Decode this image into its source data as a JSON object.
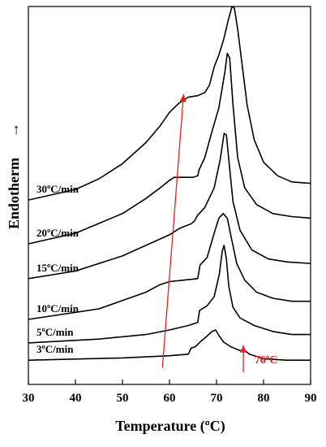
{
  "chart_data": {
    "type": "line",
    "title": "",
    "xlabel": "Temperature (ºC)",
    "ylabel": "Endotherm",
    "ylabel_arrow": "→",
    "xlim": [
      30,
      90
    ],
    "ylim": [
      0,
      100
    ],
    "x_ticks": [
      30,
      40,
      50,
      60,
      70,
      80,
      90
    ],
    "grid": false,
    "legend": "none",
    "series": [
      {
        "name": "3ºC/min",
        "points": [
          [
            30,
            6.4
          ],
          [
            50,
            7.0
          ],
          [
            60,
            7.6
          ],
          [
            64,
            8.0
          ],
          [
            64.6,
            9.6
          ],
          [
            65.5,
            10.0
          ],
          [
            66.5,
            11.2
          ],
          [
            68,
            12.8
          ],
          [
            69,
            14.0
          ],
          [
            69.8,
            14.4
          ],
          [
            70.6,
            12.8
          ],
          [
            71.5,
            11.2
          ],
          [
            73,
            10.0
          ],
          [
            74.5,
            9.2
          ],
          [
            75.5,
            8.8
          ],
          [
            76,
            9.0
          ],
          [
            77,
            8.0
          ],
          [
            80,
            6.8
          ],
          [
            85,
            6.4
          ],
          [
            90,
            6.4
          ]
        ]
      },
      {
        "name": "5ºC/min",
        "points": [
          [
            30,
            11.0
          ],
          [
            45,
            12.0
          ],
          [
            55,
            13.2
          ],
          [
            60,
            14.4
          ],
          [
            64,
            15.6
          ],
          [
            66,
            16.4
          ],
          [
            66.4,
            19.6
          ],
          [
            68,
            20.8
          ],
          [
            69.5,
            23.2
          ],
          [
            70.6,
            29.2
          ],
          [
            71.2,
            35.2
          ],
          [
            71.6,
            36.8
          ],
          [
            72.1,
            33.2
          ],
          [
            72.6,
            26.0
          ],
          [
            73.5,
            20.4
          ],
          [
            75,
            17.6
          ],
          [
            78,
            15.6
          ],
          [
            82,
            14.0
          ],
          [
            86,
            13.2
          ],
          [
            90,
            13.2
          ]
        ]
      },
      {
        "name": "10ºC/min",
        "points": [
          [
            30,
            17.2
          ],
          [
            45,
            20.0
          ],
          [
            55,
            24.4
          ],
          [
            58,
            26.4
          ],
          [
            60,
            27.2
          ],
          [
            63,
            27.6
          ],
          [
            66,
            28.0
          ],
          [
            66.5,
            31.6
          ],
          [
            68,
            33.6
          ],
          [
            69.5,
            40.0
          ],
          [
            70.5,
            44.0
          ],
          [
            71.4,
            45.2
          ],
          [
            72.3,
            44.0
          ],
          [
            73.2,
            38.4
          ],
          [
            74.3,
            32.0
          ],
          [
            76,
            27.6
          ],
          [
            78.5,
            24.4
          ],
          [
            82,
            22.8
          ],
          [
            86,
            22.0
          ],
          [
            90,
            22.0
          ]
        ]
      },
      {
        "name": "15ºC/min",
        "points": [
          [
            30,
            28.0
          ],
          [
            40,
            30.0
          ],
          [
            50,
            34.0
          ],
          [
            55,
            36.8
          ],
          [
            60,
            39.6
          ],
          [
            62,
            41.2
          ],
          [
            63.5,
            42.0
          ],
          [
            64.5,
            42.4
          ],
          [
            65.3,
            43.2
          ],
          [
            66,
            44.8
          ],
          [
            67.5,
            46.8
          ],
          [
            69.5,
            52.0
          ],
          [
            70.8,
            59.6
          ],
          [
            71.6,
            66.4
          ],
          [
            72.1,
            66.0
          ],
          [
            72.6,
            59.6
          ],
          [
            73.5,
            48.4
          ],
          [
            75,
            40.8
          ],
          [
            77.5,
            35.6
          ],
          [
            81,
            33.2
          ],
          [
            85,
            32.4
          ],
          [
            90,
            32.0
          ]
        ]
      },
      {
        "name": "20ºC/min",
        "points": [
          [
            30,
            37.2
          ],
          [
            40,
            40.0
          ],
          [
            50,
            45.2
          ],
          [
            55,
            49.2
          ],
          [
            58,
            52.0
          ],
          [
            60,
            54.0
          ],
          [
            61,
            54.8
          ],
          [
            63,
            54.8
          ],
          [
            65,
            54.8
          ],
          [
            66,
            55.2
          ],
          [
            66.3,
            56.8
          ],
          [
            67.5,
            60.0
          ],
          [
            69,
            66.8
          ],
          [
            70.5,
            73.2
          ],
          [
            71.8,
            82.8
          ],
          [
            72.3,
            87.6
          ],
          [
            72.8,
            86.4
          ],
          [
            73.5,
            74.0
          ],
          [
            74.5,
            60.0
          ],
          [
            76,
            52.0
          ],
          [
            78.5,
            47.6
          ],
          [
            82,
            45.2
          ],
          [
            86,
            44.4
          ],
          [
            90,
            44.0
          ]
        ]
      },
      {
        "name": "30ºC/min",
        "points": [
          [
            30,
            48.8
          ],
          [
            40,
            51.6
          ],
          [
            45,
            54.4
          ],
          [
            50,
            58.4
          ],
          [
            55,
            64.0
          ],
          [
            58,
            68.4
          ],
          [
            60,
            72.0
          ],
          [
            62,
            74.4
          ],
          [
            64,
            76.0
          ],
          [
            66,
            76.4
          ],
          [
            67.5,
            77.2
          ],
          [
            68.5,
            79.2
          ],
          [
            69.5,
            84.0
          ],
          [
            70.5,
            87.2
          ],
          [
            71.5,
            91.2
          ],
          [
            72.5,
            96.4
          ],
          [
            73.3,
            100.0
          ],
          [
            73.8,
            99.6
          ],
          [
            74.5,
            94.0
          ],
          [
            75.5,
            84.0
          ],
          [
            76.5,
            74.0
          ],
          [
            78,
            64.8
          ],
          [
            80,
            58.8
          ],
          [
            83,
            55.2
          ],
          [
            86,
            53.6
          ],
          [
            90,
            53.2
          ]
        ]
      }
    ],
    "annotations": [
      {
        "type": "arrow",
        "color": "#e8201c",
        "from": [
          58.5,
          4.4
        ],
        "to": [
          63,
          76.8
        ]
      },
      {
        "type": "arrow",
        "color": "#e8201c",
        "from": [
          75.7,
          3.2
        ],
        "to": [
          75.7,
          10.4
        ]
      },
      {
        "text": "76ºC",
        "color": "#e8201c",
        "at": [
          76,
          5.6
        ]
      }
    ]
  }
}
